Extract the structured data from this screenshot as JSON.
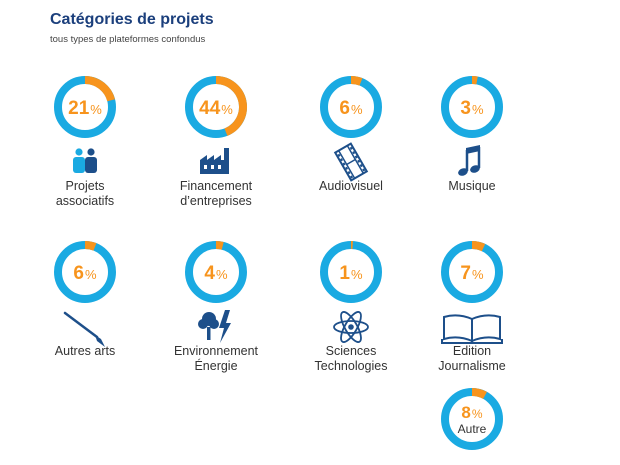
{
  "header": {
    "title": "Catégories de projets",
    "subtitle": "tous types de plateformes confondus"
  },
  "colors": {
    "ring": "#1aaae2",
    "accent": "#f7941d",
    "title": "#1b3f7c",
    "icon": "#1d4f8a",
    "text": "#333333"
  },
  "chart_data": {
    "type": "pie",
    "title": "Catégories de projets",
    "subtitle": "tous types de plateformes confondus",
    "unit": "%",
    "categories": [
      {
        "label": "Projets\nassociatifs",
        "value": 21,
        "icon": "people-icon"
      },
      {
        "label": "Financement\nd’entreprises",
        "value": 44,
        "icon": "factory-icon"
      },
      {
        "label": "Audiovisuel",
        "value": 6,
        "icon": "film-strip-icon"
      },
      {
        "label": "Musique",
        "value": 3,
        "icon": "music-note-icon"
      },
      {
        "label": "Autres arts",
        "value": 6,
        "icon": "paintbrush-icon"
      },
      {
        "label": "Environnement\nÉnergie",
        "value": 4,
        "icon": "tree-lightning-icon"
      },
      {
        "label": "Sciences\nTechnologies",
        "value": 1,
        "icon": "atom-icon"
      },
      {
        "label": "Edition\nJournalisme",
        "value": 7,
        "icon": "open-book-icon"
      },
      {
        "label": "Autre",
        "value": 8,
        "icon": ""
      }
    ]
  }
}
